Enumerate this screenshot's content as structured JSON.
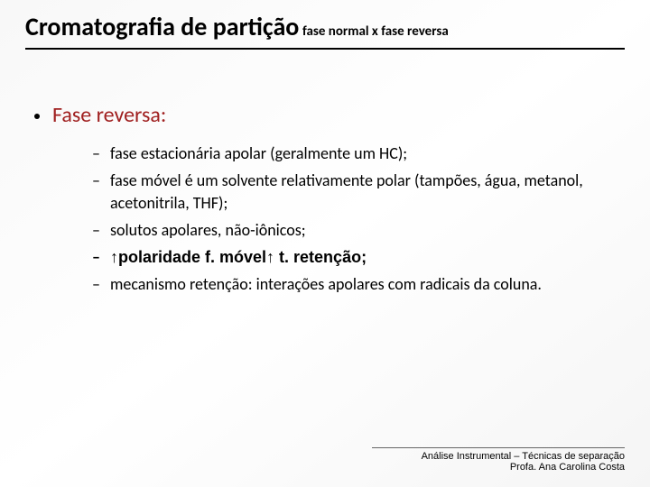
{
  "title": "Cromatografia de partição",
  "subtitle": "fase normal x fase reversa",
  "section_heading": "Fase reversa:",
  "items": [
    {
      "text": "fase estacionária apolar (geralmente um HC);",
      "bold": false,
      "arrows": false
    },
    {
      "text": "fase móvel é um solvente relativamente polar (tampões, água, metanol, acetonitrila, THF);",
      "bold": false,
      "arrows": false
    },
    {
      "text": "solutos apolares, não-iônicos;",
      "bold": false,
      "arrows": false
    },
    {
      "text": "↑polaridade f. móvel↑ t. retenção;",
      "bold": true,
      "arrows": true
    },
    {
      "text": "mecanismo retenção: interações apolares com radicais da coluna.",
      "bold": false,
      "arrows": false
    }
  ],
  "footer_line1": "Análise Instrumental – Técnicas de separação",
  "footer_line2": "Profa. Ana Carolina Costa",
  "colors": {
    "heading": "#a02020",
    "text": "#000000",
    "rule": "#000000"
  }
}
